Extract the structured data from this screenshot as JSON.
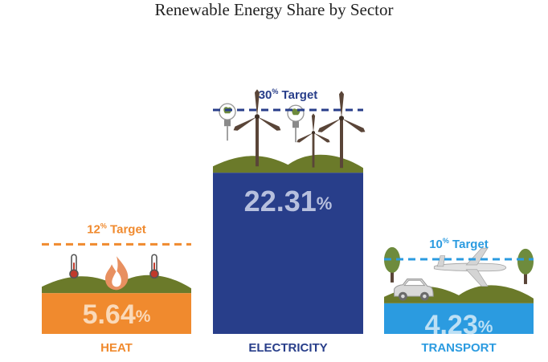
{
  "chart_data": {
    "type": "bar",
    "title": "Renewable Energy Share by Sector",
    "categories": [
      "HEAT",
      "ELECTRICITY",
      "TRANSPORT"
    ],
    "values": [
      5.64,
      22.31,
      4.23
    ],
    "value_labels": [
      "5.64",
      "22.31",
      "4.23"
    ],
    "value_unit": "%",
    "targets": [
      12,
      30,
      10
    ],
    "target_word": "Target",
    "target_unit": "%",
    "ylim": [
      0,
      30
    ],
    "grid": false,
    "legend": "none",
    "colors": [
      "#F08A2E",
      "#283E8A",
      "#2B9BE0"
    ],
    "value_text_colors": [
      "#FAD9B8",
      "#B7C0DE",
      "#BDE0F5"
    ],
    "scene_icons": [
      "thermometer-icon",
      "flame-icon",
      "thermometer-icon",
      "light-bulb-icon",
      "wind-turbine-icon",
      "car-icon",
      "airplane-icon",
      "tree-icon"
    ]
  }
}
